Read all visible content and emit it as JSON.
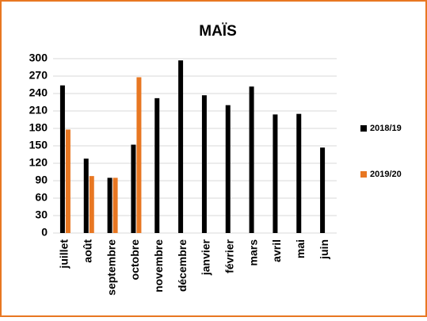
{
  "chart_data": {
    "type": "bar",
    "title": "MAÏS",
    "categories": [
      "juillet",
      "août",
      "septembre",
      "octobre",
      "novembre",
      "décembre",
      "janvier",
      "février",
      "mars",
      "avril",
      "mai",
      "juin"
    ],
    "series": [
      {
        "name": "2018/19",
        "color": "#000000",
        "values": [
          254,
          128,
          95,
          152,
          232,
          297,
          237,
          220,
          252,
          204,
          205,
          147
        ]
      },
      {
        "name": "2019/20",
        "color": "#e87722",
        "values": [
          178,
          98,
          95,
          268,
          null,
          null,
          null,
          null,
          null,
          null,
          null,
          null
        ]
      }
    ],
    "ylim": [
      0,
      300
    ],
    "yticks": [
      0,
      30,
      60,
      90,
      120,
      150,
      180,
      210,
      240,
      270,
      300
    ],
    "grid": true,
    "legend": "right"
  }
}
